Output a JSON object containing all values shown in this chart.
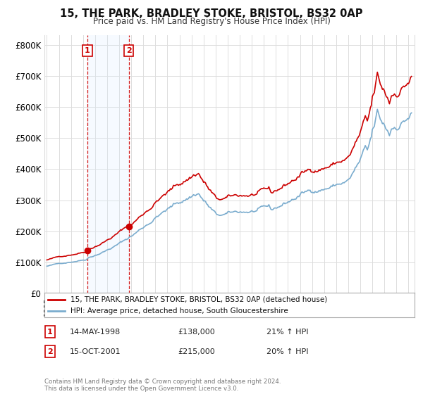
{
  "title": "15, THE PARK, BRADLEY STOKE, BRISTOL, BS32 0AP",
  "subtitle": "Price paid vs. HM Land Registry's House Price Index (HPI)",
  "legend_line1": "15, THE PARK, BRADLEY STOKE, BRISTOL, BS32 0AP (detached house)",
  "legend_line2": "HPI: Average price, detached house, South Gloucestershire",
  "sale1_date": "14-MAY-1998",
  "sale1_price": "£138,000",
  "sale1_hpi": "21% ↑ HPI",
  "sale1_year": 1998.37,
  "sale1_value": 138000,
  "sale2_date": "15-OCT-2001",
  "sale2_price": "£215,000",
  "sale2_hpi": "20% ↑ HPI",
  "sale2_year": 2001.79,
  "sale2_value": 215000,
  "yticks": [
    0,
    100000,
    200000,
    300000,
    400000,
    500000,
    600000,
    700000,
    800000
  ],
  "ylim": [
    0,
    830000
  ],
  "xlim_min": 1994.8,
  "xlim_max": 2025.5,
  "footer": "Contains HM Land Registry data © Crown copyright and database right 2024.\nThis data is licensed under the Open Government Licence v3.0.",
  "background_color": "#ffffff",
  "grid_color": "#dddddd",
  "red_color": "#cc0000",
  "blue_color": "#7aacce",
  "shade_color": "#ddeeff"
}
